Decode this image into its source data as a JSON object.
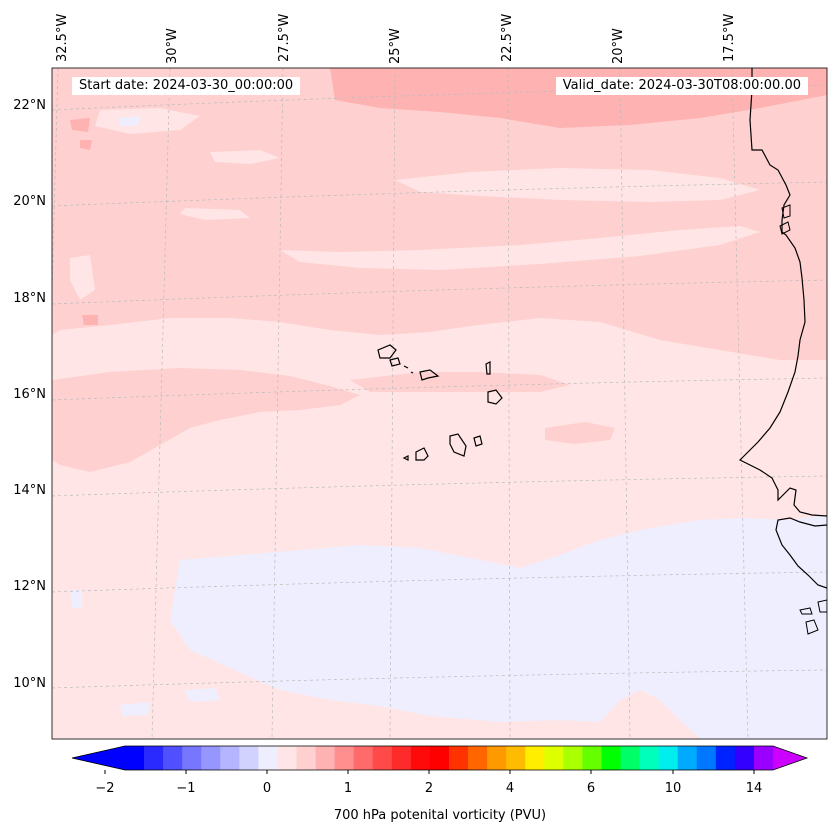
{
  "map": {
    "title": "",
    "start_date": "Start date: 2024-03-30_00:00:00",
    "valid_date": "Valid_date: 2024-03-30T08:00:00.00",
    "lon_labels": [
      "32.5°W",
      "30°W",
      "27.5°W",
      "25°W",
      "22.5°W",
      "20°W",
      "17.5°W"
    ],
    "lat_labels": [
      "22°N",
      "20°N",
      "18°N",
      "16°N",
      "14°N",
      "12°N",
      "10°N"
    ],
    "fill_colors": {
      "band_0_to_0_5": "#ffe5e5",
      "band_0_5_to_1": "#ffd0d0",
      "band_1_to_1_5": "#ffb2b2",
      "band_neg_0_5_to_0": "#eeeeff",
      "coastline": "#000000",
      "gridline": "#bbbbbb"
    }
  },
  "colorbar": {
    "label": "700 hPa potenital vorticity (PVU)",
    "ticks": [
      "−2",
      "−1",
      "0",
      "1",
      "2",
      "4",
      "6",
      "10",
      "14"
    ],
    "colors": [
      "#0000ff",
      "#2a2aff",
      "#5050ff",
      "#7676ff",
      "#9696ff",
      "#b4b4ff",
      "#d2d2ff",
      "#eeeeff",
      "#ffe5e5",
      "#ffd0d0",
      "#ffb2b2",
      "#ff8e8e",
      "#ff6a6a",
      "#ff4a4a",
      "#ff2a2a",
      "#ff0a0a",
      "#ff0000",
      "#ff3300",
      "#ff6600",
      "#ff9900",
      "#ffbb00",
      "#ffee00",
      "#ddff00",
      "#aaff00",
      "#66ff00",
      "#00ff00",
      "#00ff66",
      "#00ffbb",
      "#00eeee",
      "#00aaff",
      "#0077ff",
      "#0022ff",
      "#3300ff",
      "#9900ff"
    ],
    "under_color": "#0000ff",
    "over_color": "#cc00ff"
  }
}
